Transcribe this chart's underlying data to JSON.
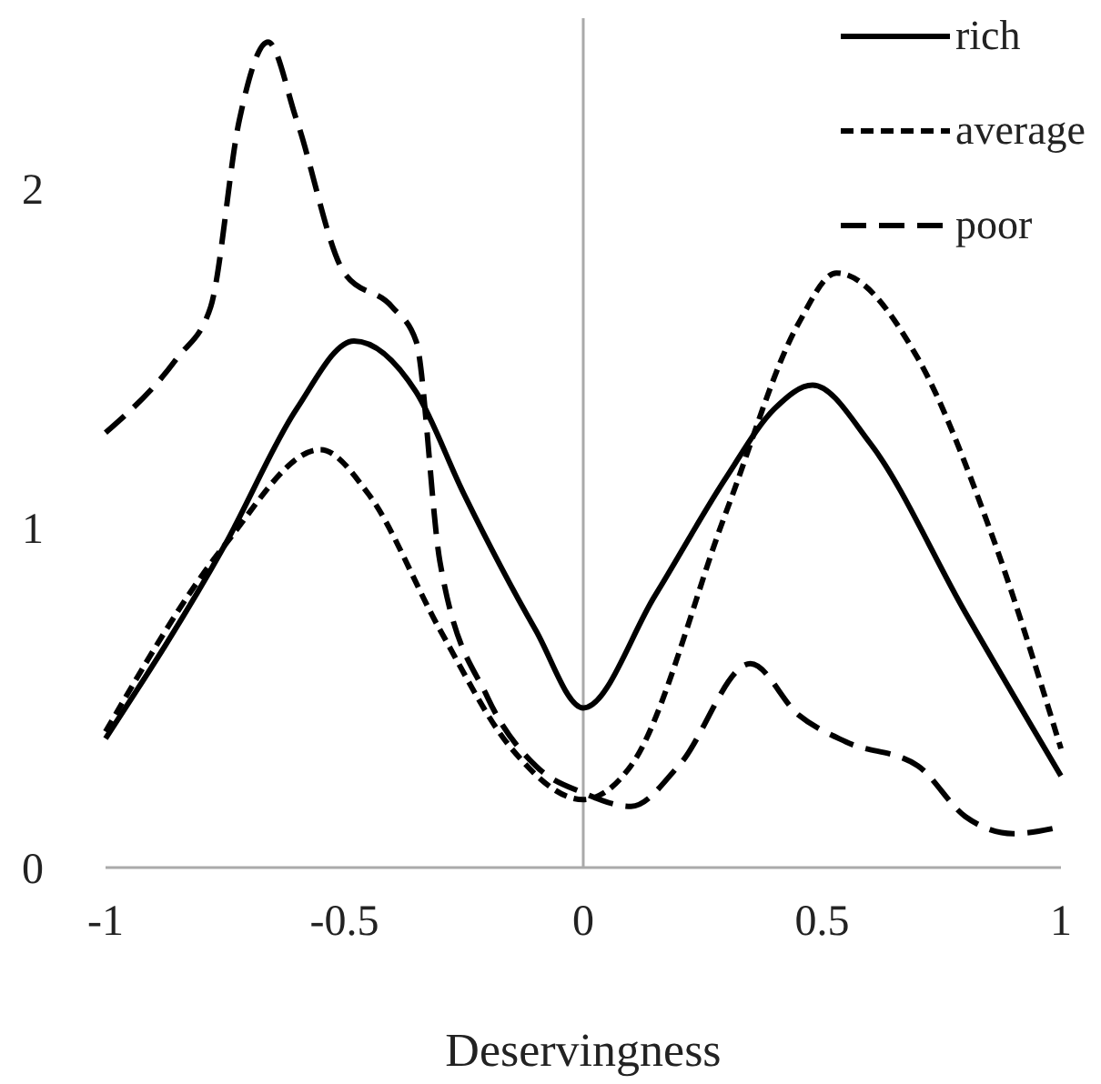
{
  "chart_data": {
    "type": "line",
    "xlabel": "Deservingness",
    "xlim": [
      -1,
      1
    ],
    "xticks": [
      -1,
      -0.5,
      0,
      0.5,
      1
    ],
    "ylim": [
      0,
      2.5
    ],
    "yticks": [
      0,
      1,
      2
    ],
    "ref_lines": [
      {
        "axis": "x",
        "value": 0,
        "color": "#aaaaaa"
      }
    ],
    "legend": "top right",
    "marker": "none",
    "series": [
      {
        "name": "rich",
        "color": "#000000",
        "line_style": "solid",
        "x": [
          -1,
          -0.75,
          -0.6,
          -0.48,
          -0.35,
          -0.25,
          -0.1,
          0,
          0.15,
          0.3,
          0.4,
          0.48,
          0.6,
          0.8,
          1
        ],
        "values": [
          0.38,
          0.95,
          1.35,
          1.55,
          1.4,
          1.1,
          0.7,
          0.47,
          0.8,
          1.15,
          1.35,
          1.42,
          1.25,
          0.75,
          0.27
        ]
      },
      {
        "name": "average",
        "color": "#000000",
        "line_style": "dashed",
        "x": [
          -1,
          -0.75,
          -0.55,
          -0.45,
          -0.3,
          -0.15,
          0,
          0.1,
          0.3,
          0.45,
          0.53,
          0.7,
          0.85,
          1
        ],
        "values": [
          0.4,
          0.95,
          1.23,
          1.1,
          0.7,
          0.35,
          0.2,
          0.3,
          1.05,
          1.6,
          1.75,
          1.5,
          1.0,
          0.35
        ]
      },
      {
        "name": "poor",
        "color": "#000000",
        "line_style": "long-dashed",
        "x": [
          -1,
          -0.85,
          -0.78,
          -0.72,
          -0.66,
          -0.6,
          -0.5,
          -0.4,
          -0.35,
          -0.3,
          -0.2,
          -0.1,
          0,
          0.1,
          0.2,
          0.35,
          0.45,
          0.55,
          0.7,
          0.8,
          0.9,
          1
        ],
        "values": [
          1.28,
          1.5,
          1.65,
          2.2,
          2.43,
          2.2,
          1.75,
          1.65,
          1.55,
          0.9,
          0.5,
          0.3,
          0.22,
          0.18,
          0.3,
          0.6,
          0.45,
          0.37,
          0.3,
          0.15,
          0.1,
          0.12
        ]
      }
    ]
  }
}
